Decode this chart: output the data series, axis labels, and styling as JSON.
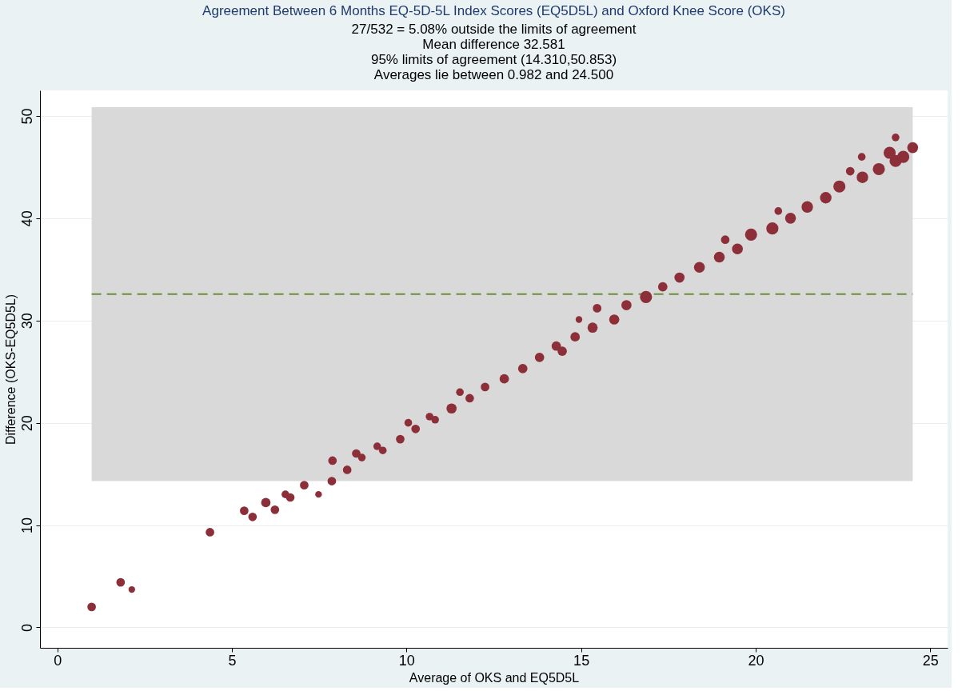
{
  "chart_data": {
    "type": "bubble",
    "title": "Agreement Between 6 Months EQ-5D-5L Index Scores (EQ5D5L) and Oxford Knee Score (OKS)",
    "annotations": [
      "27/532 =   5.08% outside the limits of agreement",
      "Mean difference 32.581",
      "95% limits of agreement (14.310,50.853)",
      "Averages lie between 0.982 and 24.500"
    ],
    "xlabel": "Average of OKS and EQ5D5L",
    "ylabel": "Difference (OKS-EQ5D5L)",
    "x": [
      0.98,
      1.81,
      2.13,
      4.37,
      5.35,
      5.59,
      5.97,
      6.23,
      6.53,
      6.67,
      7.07,
      7.48,
      7.86,
      7.88,
      8.3,
      8.56,
      8.72,
      9.16,
      9.32,
      9.82,
      10.05,
      10.26,
      10.66,
      10.82,
      11.29,
      11.53,
      11.81,
      12.25,
      12.8,
      13.33,
      13.81,
      14.29,
      14.46,
      14.83,
      14.94,
      15.33,
      15.46,
      15.95,
      16.3,
      16.86,
      17.34,
      17.82,
      18.39,
      18.96,
      19.13,
      19.48,
      19.87,
      20.48,
      20.65,
      21.0,
      21.48,
      22.01,
      22.4,
      22.71,
      23.04,
      23.06,
      23.53,
      24.01,
      24.01,
      23.84,
      24.5,
      24.23
    ],
    "series": [
      {
        "color": "#8c2f39",
        "values": [
          2.0,
          4.4,
          3.7,
          9.3,
          11.4,
          10.8,
          12.2,
          11.5,
          13.0,
          12.7,
          13.9,
          13.0,
          14.3,
          16.3,
          15.4,
          17.0,
          16.6,
          17.7,
          17.3,
          18.4,
          20.0,
          19.4,
          20.6,
          20.3,
          21.4,
          23.0,
          22.4,
          23.5,
          24.3,
          25.3,
          26.4,
          27.5,
          27.0,
          28.4,
          30.1,
          29.3,
          31.2,
          30.1,
          31.5,
          32.3,
          33.3,
          34.2,
          35.2,
          36.2,
          37.9,
          37.0,
          38.4,
          39.0,
          40.7,
          40.0,
          41.1,
          42.0,
          43.1,
          44.6,
          46.0,
          44.0,
          44.8,
          45.6,
          47.9,
          46.4,
          46.9,
          46.0
        ],
        "sizes": [
          0.5,
          0.5,
          0.3,
          0.5,
          0.5,
          0.5,
          0.6,
          0.5,
          0.4,
          0.5,
          0.5,
          0.3,
          0.5,
          0.5,
          0.5,
          0.5,
          0.4,
          0.4,
          0.4,
          0.5,
          0.4,
          0.5,
          0.4,
          0.4,
          0.7,
          0.4,
          0.5,
          0.5,
          0.6,
          0.6,
          0.6,
          0.6,
          0.6,
          0.6,
          0.3,
          0.7,
          0.5,
          0.7,
          0.7,
          1.0,
          0.6,
          0.7,
          0.8,
          0.8,
          0.5,
          0.8,
          1.0,
          1.0,
          0.4,
          0.8,
          0.9,
          0.9,
          1.0,
          0.5,
          0.4,
          0.9,
          1.0,
          1.0,
          0.4,
          1.0,
          0.8,
          1.0
        ]
      }
    ],
    "ref_lines": [
      {
        "axis": "y",
        "value": 32.581,
        "color": "#6b8e3a",
        "line_style": "dashed"
      }
    ],
    "bands": [
      {
        "axis": "y",
        "from": 14.31,
        "to": 50.853,
        "color": "#d9d9d9"
      }
    ],
    "xlim": [
      -0.5,
      25.5
    ],
    "ylim": [
      -2,
      52.5
    ],
    "xticks": [
      0,
      5,
      10,
      15,
      20,
      25
    ],
    "yticks": [
      0,
      10,
      20,
      30,
      40,
      50
    ],
    "grid": "y",
    "legend": false
  }
}
